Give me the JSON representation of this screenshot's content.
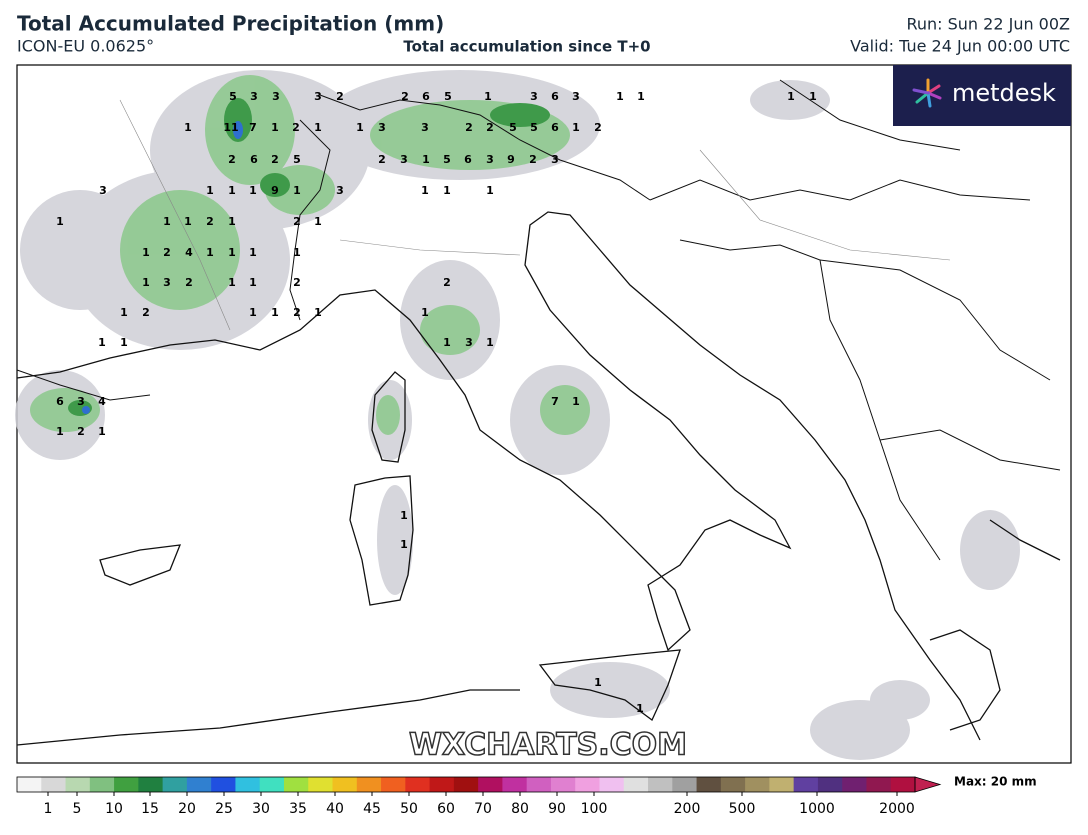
{
  "header": {
    "title": "Total Accumulated Precipitation (mm)",
    "model": "ICON-EU 0.0625°",
    "subtitle": "Total accumulation since T+0",
    "run": "Run: Sun 22 Jun 00Z",
    "valid": "Valid: Tue 24 Jun 00:00 UTC"
  },
  "logo": "metdesk",
  "watermark": "WXCHARTS.COM",
  "map": {
    "point_labels": [
      5,
      3,
      3,
      3,
      2,
      2,
      6,
      5,
      1,
      3,
      6,
      3,
      1,
      1,
      1,
      1,
      1,
      11,
      7,
      1,
      2,
      1,
      1,
      3,
      3,
      2,
      2,
      5,
      5,
      6,
      1,
      2,
      2,
      6,
      2,
      5,
      2,
      3,
      1,
      5,
      6,
      3,
      9,
      2,
      3,
      3,
      1,
      1,
      1,
      9,
      1,
      3,
      1,
      1,
      1,
      1,
      1,
      1,
      2,
      1,
      2,
      1,
      1,
      2,
      4,
      1,
      1,
      1,
      1,
      1,
      3,
      2,
      1,
      1,
      2,
      2,
      1,
      2,
      1,
      1,
      2,
      1,
      1,
      1,
      1,
      1,
      3,
      1,
      6,
      3,
      4,
      7,
      1,
      1,
      2,
      1,
      1,
      1,
      1,
      1
    ]
  },
  "colorbar": {
    "ticks": [
      1,
      5,
      10,
      15,
      20,
      25,
      30,
      35,
      40,
      45,
      50,
      60,
      70,
      80,
      90,
      100,
      200,
      500,
      1000,
      2000
    ],
    "max_label": "Max: 20 mm"
  }
}
